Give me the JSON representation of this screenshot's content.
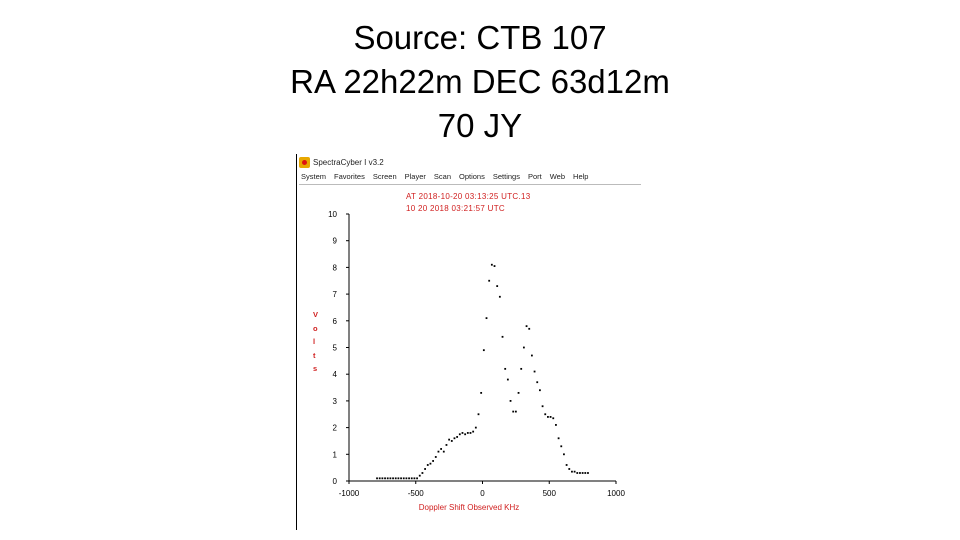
{
  "slide": {
    "title_lines": [
      "Source: CTB 107",
      "RA 22h22m DEC 63d12m",
      "70 JY"
    ]
  },
  "app": {
    "title": "SpectraCyber I v3.2",
    "menu": [
      "System",
      "Favorites",
      "Screen",
      "Player",
      "Scan",
      "Options",
      "Settings",
      "Port",
      "Web",
      "Help"
    ]
  },
  "chart_data": {
    "type": "scatter",
    "title": "",
    "timestamps": [
      "AT 2018-10-20 03:13:25 UTC.13",
      "10 20 2018  03:21:57 UTC"
    ],
    "xlabel": "Doppler Shift   Observed KHz",
    "ylabel": "Volts",
    "xlim": [
      -1000,
      1000
    ],
    "ylim": [
      0,
      10
    ],
    "xticks": [
      "-1000",
      "-500",
      "0",
      "500",
      "1000"
    ],
    "yticks": [
      "0",
      "1",
      "2",
      "3",
      "4",
      "5",
      "6",
      "7",
      "8",
      "9",
      "10"
    ],
    "grid": false,
    "series": [
      {
        "x": [
          -790,
          -770,
          -750,
          -730,
          -710,
          -690,
          -670,
          -650,
          -630,
          -610,
          -590,
          -570,
          -550,
          -530,
          -510,
          -490,
          -470,
          -450,
          -430,
          -410,
          -390,
          -370,
          -350,
          -330,
          -310,
          -290,
          -270,
          -250,
          -230,
          -210,
          -190,
          -170,
          -150,
          -130,
          -110,
          -90,
          -70,
          -50,
          -30,
          -10,
          10,
          30,
          50,
          70,
          90,
          110,
          130,
          150,
          170,
          190,
          210,
          230,
          250,
          270,
          290,
          310,
          330,
          350,
          370,
          390,
          410,
          430,
          450,
          470,
          490,
          510,
          530,
          550,
          570,
          590,
          610,
          630,
          650,
          670,
          690,
          710,
          730,
          750,
          770,
          790
        ],
        "y": [
          0.1,
          0.1,
          0.1,
          0.1,
          0.1,
          0.1,
          0.1,
          0.1,
          0.1,
          0.1,
          0.1,
          0.1,
          0.1,
          0.1,
          0.1,
          0.1,
          0.2,
          0.3,
          0.45,
          0.6,
          0.65,
          0.75,
          0.9,
          1.1,
          1.2,
          1.1,
          1.35,
          1.55,
          1.5,
          1.6,
          1.65,
          1.75,
          1.8,
          1.75,
          1.8,
          1.8,
          1.85,
          2.0,
          2.5,
          3.3,
          4.9,
          6.1,
          7.5,
          8.1,
          8.05,
          7.3,
          6.9,
          5.4,
          4.2,
          3.8,
          3.0,
          2.6,
          2.6,
          3.3,
          4.2,
          5.0,
          5.8,
          5.7,
          4.7,
          4.1,
          3.7,
          3.4,
          2.8,
          2.5,
          2.4,
          2.4,
          2.35,
          2.1,
          1.6,
          1.3,
          1.0,
          0.6,
          0.45,
          0.35,
          0.35,
          0.3,
          0.3,
          0.3,
          0.3,
          0.3
        ]
      }
    ]
  }
}
